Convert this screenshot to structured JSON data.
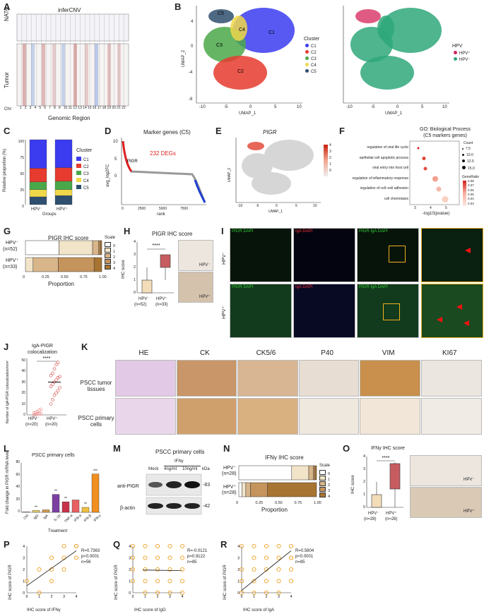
{
  "panels": {
    "A": {
      "label": "A",
      "title": "inferCNV",
      "ylabels": [
        "NATs",
        "Tumor"
      ],
      "chr_prefix": "Chr:",
      "chr": [
        "1",
        "2",
        "3",
        "4",
        "5",
        "6",
        "7",
        "8",
        "9",
        "10",
        "11",
        "12",
        "13",
        "14",
        "15",
        "16",
        "17",
        "18",
        "19",
        "20",
        "21",
        "22"
      ],
      "xlabel": "Genomic Region"
    },
    "B": {
      "label": "B",
      "xlabel": "UMAP_1",
      "ylabel": "UMAP_2",
      "cluster_legend": {
        "title": "Cluster",
        "items": [
          "C1",
          "C2",
          "C3",
          "C4",
          "C5"
        ]
      },
      "hpv_legend": {
        "title": "HPV",
        "items": [
          "HPV⁺",
          "HPV⁻"
        ]
      },
      "cluster_names": [
        "C1",
        "C2",
        "C3",
        "C4",
        "C5"
      ],
      "xticks": [
        "-10",
        "-5",
        "0",
        "5",
        "10"
      ],
      "yticks": [
        "4",
        "0",
        "-4",
        "-8"
      ]
    },
    "C": {
      "label": "C",
      "ylabel": "Relative proportion (%)",
      "xlabel": "Groups",
      "legend_title": "Cluster",
      "legend": [
        "C1",
        "C2",
        "C3",
        "C4",
        "C5"
      ],
      "yticks": [
        "0",
        "25",
        "50",
        "75",
        "100"
      ]
    },
    "D": {
      "label": "D",
      "title": "Marker genes (C5)",
      "annotation": "232 DEGs",
      "gene": "PIGR",
      "xlabel": "rank",
      "ylabel": "avg_log2FC",
      "xticks": [
        "0",
        "2500",
        "5000",
        "7500"
      ],
      "yticks": [
        "10",
        "5",
        "0"
      ]
    },
    "E": {
      "label": "E",
      "title": "PIGR",
      "xlabel": "UMAP_1",
      "ylabel": "UMAP_2",
      "scale": [
        "4",
        "3",
        "2",
        "1",
        "0"
      ],
      "xticks": [
        "-10",
        "-5",
        "0",
        "5",
        "10"
      ],
      "yticks": [
        "4",
        "0",
        "-4",
        "-8"
      ]
    },
    "F": {
      "label": "F",
      "title": "GO: Biological Process",
      "subtitle": "(C5 markers genes)",
      "xlabel": "-log10(pvalue)",
      "terms": [
        "regulation of viral life cycle",
        "epithelial cell apoptotic process",
        "viral entry into host cell",
        "regulation of inflammatory response",
        "regulation of cell–cell adhesion",
        "cell chemotaxis"
      ],
      "count_title": "Count",
      "counts": [
        "7.5",
        "10.0",
        "12.5",
        "15.0"
      ],
      "ratio_title": "GeneRatio",
      "ratios": [
        "0.08",
        "0.07",
        "0.06",
        "0.05",
        "0.04",
        "0.03"
      ],
      "xticks": [
        "3",
        "4",
        "5"
      ]
    },
    "G": {
      "label": "G",
      "title": "PIGR IHC score",
      "xlabel": "Proportion",
      "scale_title": "Scale",
      "scale": [
        "0",
        "1",
        "2",
        "3",
        "4"
      ],
      "xticks": [
        "0",
        "0.25",
        "0.50",
        "0.75",
        "1.00"
      ]
    },
    "H": {
      "label": "H",
      "title": "PIGR IHC score",
      "ylabel": "IHC score",
      "sig": "****",
      "yticks": [
        "4",
        "3",
        "2",
        "1",
        "0"
      ]
    },
    "I": {
      "label": "I",
      "col_titles": [
        "PIGR DAPI",
        "IgA DAPI",
        "PIGR IgA DAPI"
      ]
    },
    "J": {
      "label": "J",
      "title": "IgA-PIGR",
      "title2": "colocalization",
      "ylabel": "Number of IgA-PIGR colocalization/mm²",
      "sig": "****",
      "yticks": [
        "0",
        "10",
        "20",
        "30",
        "40",
        "50"
      ]
    },
    "K": {
      "label": "K",
      "cols": [
        "HE",
        "CK",
        "CK5/6",
        "P40",
        "VIM",
        "KI67"
      ],
      "rows": [
        "PSCC tumor tissues",
        "PSCC primary cells"
      ]
    },
    "L": {
      "label": "L",
      "title": "PSCC primary cells",
      "ylabel": "Fold change in PIGR mRNA level",
      "xlabel": "Treatment",
      "categories": [
        "Ctrl",
        "IgG",
        "IgA",
        "IL-1b",
        "TNF-a",
        "IFN-a",
        "IFN-β",
        "IFN-γ"
      ],
      "sigs": [
        "",
        "**",
        "",
        "**",
        "**",
        "",
        "**",
        "***"
      ],
      "yticks": [
        "0",
        "20",
        "40",
        "60",
        "80"
      ]
    },
    "M": {
      "label": "M",
      "title": "PSCC primary cells",
      "treat": "IFNγ",
      "cols": [
        "Mock",
        "4ng/ml",
        "10ng/ml"
      ],
      "kda": "kDa",
      "rows": [
        "anti-PIGR",
        "β-actin"
      ],
      "mw": [
        "-83",
        "-42"
      ]
    },
    "N": {
      "label": "N",
      "title": "IFNγ IHC score",
      "xlabel": "Proportion",
      "scale_title": "Scale",
      "scale": [
        "0",
        "1",
        "2",
        "3",
        "4"
      ],
      "xticks": [
        "0",
        "0.25",
        "0.50",
        "0.75",
        "1.00"
      ]
    },
    "O": {
      "label": "O",
      "title": "IFNγ IHC score",
      "ylabel": "IHC score",
      "sig": "****",
      "yticks": [
        "4",
        "3",
        "2",
        "1",
        "0"
      ]
    },
    "P": {
      "label": "P",
      "xlabel": "IHC score of IFNγ",
      "ylabel": "IHC score of PIGR",
      "stats": [
        "R=0.7363",
        "p<0.0001",
        "n=56"
      ]
    },
    "Q": {
      "label": "Q",
      "xlabel": "IHC score of IgG",
      "ylabel": "IHC score of PIGR",
      "stats": [
        "R=-0.0121",
        "p=0.9122",
        "n=85"
      ]
    },
    "R": {
      "label": "R",
      "xlabel": "IHC score of IgA",
      "ylabel": "IHC score of PIGR",
      "stats": [
        "R=0.5804",
        "p<0.0001",
        "n=85"
      ]
    }
  },
  "groups": {
    "neg": "HPV⁻",
    "pos": "HPV⁺",
    "neg_n52": "(n=52)",
    "pos_n33": "(n=33)",
    "neg_n20": "(n=20)",
    "pos_n20": "(n=20)",
    "neg_n28": "(n=28)",
    "pos_n28": "(n=28)"
  },
  "colors": {
    "C1": "#3b3bf0",
    "C2": "#e63b2e",
    "C3": "#4aa84a",
    "C4": "#f0d84a",
    "C5": "#2f4f6f",
    "hpv_pos": "#d6245a",
    "hpv_neg": "#2fa87a",
    "orange": "#f0a020"
  },
  "chart_data": [
    {
      "panel": "C",
      "type": "bar",
      "stacked": true,
      "categories": [
        "HPV⁻",
        "HPV⁺"
      ],
      "series": [
        {
          "name": "C1",
          "values": [
            44,
            43
          ]
        },
        {
          "name": "C2",
          "values": [
            21,
            21
          ]
        },
        {
          "name": "C3",
          "values": [
            12,
            13
          ]
        },
        {
          "name": "C4",
          "values": [
            11,
            9
          ]
        },
        {
          "name": "C5",
          "values": [
            12,
            14
          ]
        }
      ],
      "ylabel": "Relative proportion (%)",
      "ylim": [
        0,
        100
      ]
    },
    {
      "panel": "G",
      "type": "bar",
      "stacked": true,
      "horizontal": true,
      "categories": [
        "HPV⁻",
        "HPV⁺"
      ],
      "series": [
        {
          "name": "0",
          "values": [
            0.44,
            0
          ]
        },
        {
          "name": "1",
          "values": [
            0.44,
            0.1
          ]
        },
        {
          "name": "2",
          "values": [
            0.08,
            0.33
          ]
        },
        {
          "name": "3",
          "values": [
            0.02,
            0.47
          ]
        },
        {
          "name": "4",
          "values": [
            0.02,
            0.1
          ]
        }
      ],
      "xlim": [
        0,
        1
      ]
    },
    {
      "panel": "N",
      "type": "bar",
      "stacked": true,
      "horizontal": true,
      "categories": [
        "HPV⁻",
        "HPV⁺"
      ],
      "series": [
        {
          "name": "0",
          "values": [
            0.68,
            0.04
          ]
        },
        {
          "name": "1",
          "values": [
            0.22,
            0.05
          ]
        },
        {
          "name": "2",
          "values": [
            0.06,
            0.06
          ]
        },
        {
          "name": "3",
          "values": [
            0.02,
            0.22
          ]
        },
        {
          "name": "4",
          "values": [
            0.02,
            0.63
          ]
        }
      ],
      "xlim": [
        0,
        1
      ]
    },
    {
      "panel": "L",
      "type": "bar",
      "categories": [
        "Ctrl",
        "IgG",
        "IgA",
        "IL-1b",
        "TNF-a",
        "IFN-a",
        "IFN-β",
        "IFN-γ"
      ],
      "values": [
        1,
        3,
        4,
        29,
        17,
        20,
        8,
        62
      ],
      "ylim": [
        0,
        80
      ]
    },
    {
      "panel": "P",
      "type": "scatter",
      "x": [
        0,
        1,
        1,
        2,
        2,
        2,
        3,
        3,
        3,
        4,
        4,
        4
      ],
      "y": [
        1,
        0,
        2,
        1,
        2,
        3,
        2,
        3,
        4,
        3,
        4,
        4
      ],
      "fit": [
        [
          0,
          0.6
        ],
        [
          4,
          3.6
        ]
      ],
      "xlim": [
        0,
        4
      ],
      "ylim": [
        0,
        4
      ]
    },
    {
      "panel": "Q",
      "type": "scatter",
      "x": [
        0,
        0,
        0,
        0,
        1,
        1,
        1,
        1,
        1,
        2,
        2,
        2,
        2,
        2,
        3,
        3,
        3,
        3,
        3,
        4,
        4,
        4,
        4,
        4
      ],
      "y": [
        1,
        2,
        3,
        4,
        0,
        1,
        2,
        3,
        4,
        0,
        1,
        2,
        3,
        4,
        0,
        1,
        2,
        3,
        4,
        0,
        1,
        2,
        3,
        4
      ],
      "fit": [
        [
          0.8,
          1.95
        ],
        [
          4,
          1.9
        ]
      ],
      "xlim": [
        0,
        4
      ],
      "ylim": [
        0,
        4
      ]
    },
    {
      "panel": "R",
      "type": "scatter",
      "x": [
        0,
        0,
        0,
        0,
        1,
        1,
        1,
        1,
        1,
        2,
        2,
        2,
        2,
        2,
        3,
        3,
        3,
        3,
        3,
        4,
        4,
        4,
        4,
        4
      ],
      "y": [
        0,
        1,
        2,
        4,
        0,
        1,
        2,
        3,
        4,
        0,
        1,
        2,
        3,
        4,
        0,
        1,
        2,
        3,
        4,
        1,
        2,
        3,
        4,
        3
      ],
      "fit": [
        [
          0,
          0.2
        ],
        [
          4,
          3.6
        ]
      ],
      "xlim": [
        0,
        4
      ],
      "ylim": [
        0,
        4
      ]
    }
  ]
}
